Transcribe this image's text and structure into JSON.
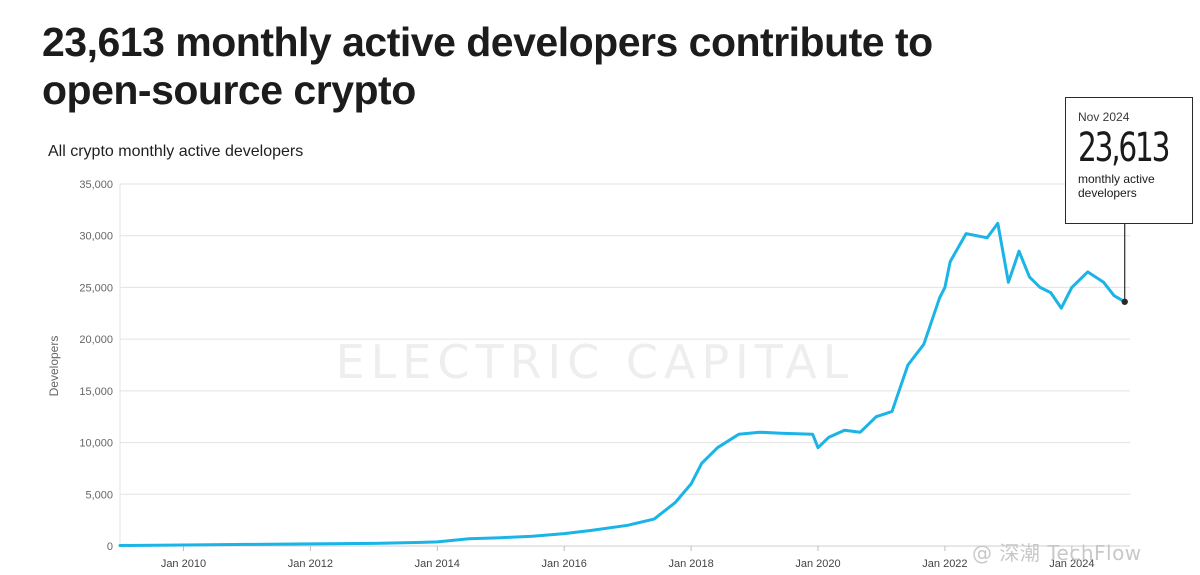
{
  "headline": "23,613 monthly active developers contribute to open-source crypto",
  "subtitle": "All crypto monthly active developers",
  "callout": {
    "date": "Nov 2024",
    "value": "23,613",
    "description": "monthly active developers"
  },
  "brand_watermark": "ELECTRIC CAPITAL",
  "corner_watermark": "@ 深潮 TechFlow",
  "colors": {
    "line": "#1ab4e6",
    "grid": "#e3e3e3",
    "text": "#1a1a1a",
    "axis_text": "#666666"
  },
  "chart_data": {
    "type": "line",
    "title": "All crypto monthly active developers",
    "ylabel": "Developers",
    "xlabel": "",
    "ylim": [
      0,
      35000
    ],
    "xlim": [
      "2009-01",
      "2024-12"
    ],
    "yticks": [
      0,
      5000,
      10000,
      15000,
      20000,
      25000,
      30000,
      35000
    ],
    "ytick_labels": [
      "0",
      "5,000",
      "10,000",
      "15,000",
      "20,000",
      "25,000",
      "30,000",
      "35,000"
    ],
    "xticks": [
      "2010-01",
      "2012-01",
      "2014-01",
      "2016-01",
      "2018-01",
      "2020-01",
      "2022-01",
      "2024-01"
    ],
    "xtick_labels": [
      "Jan 2010",
      "Jan 2012",
      "Jan 2014",
      "Jan 2016",
      "Jan 2018",
      "Jan 2020",
      "Jan 2022",
      "Jan 2024"
    ],
    "grid": true,
    "series": [
      {
        "points": [
          [
            "2009-01",
            50
          ],
          [
            "2010-01",
            100
          ],
          [
            "2011-01",
            150
          ],
          [
            "2012-01",
            200
          ],
          [
            "2013-01",
            250
          ],
          [
            "2013-10",
            350
          ],
          [
            "2014-01",
            400
          ],
          [
            "2014-07",
            700
          ],
          [
            "2015-01",
            800
          ],
          [
            "2015-07",
            950
          ],
          [
            "2016-01",
            1200
          ],
          [
            "2016-06",
            1500
          ],
          [
            "2017-01",
            2000
          ],
          [
            "2017-06",
            2600
          ],
          [
            "2017-10",
            4200
          ],
          [
            "2018-01",
            6000
          ],
          [
            "2018-03",
            8000
          ],
          [
            "2018-06",
            9500
          ],
          [
            "2018-10",
            10800
          ],
          [
            "2019-02",
            11000
          ],
          [
            "2019-06",
            10900
          ],
          [
            "2019-12",
            10800
          ],
          [
            "2020-01",
            9500
          ],
          [
            "2020-03",
            10500
          ],
          [
            "2020-06",
            11200
          ],
          [
            "2020-09",
            11000
          ],
          [
            "2020-12",
            12500
          ],
          [
            "2021-03",
            13000
          ],
          [
            "2021-06",
            17500
          ],
          [
            "2021-09",
            19500
          ],
          [
            "2021-12",
            24000
          ],
          [
            "2022-01",
            25000
          ],
          [
            "2022-02",
            27500
          ],
          [
            "2022-05",
            30200
          ],
          [
            "2022-09",
            29800
          ],
          [
            "2022-11",
            31200
          ],
          [
            "2023-01",
            25500
          ],
          [
            "2023-03",
            28500
          ],
          [
            "2023-05",
            26000
          ],
          [
            "2023-07",
            25000
          ],
          [
            "2023-09",
            24500
          ],
          [
            "2023-11",
            23000
          ],
          [
            "2024-01",
            25000
          ],
          [
            "2024-04",
            26500
          ],
          [
            "2024-07",
            25500
          ],
          [
            "2024-09",
            24200
          ],
          [
            "2024-11",
            23613
          ]
        ]
      }
    ],
    "annotations": [
      {
        "x": "2024-11",
        "y": 23613,
        "text": "Nov 2024 23,613 monthly active developers"
      }
    ]
  }
}
